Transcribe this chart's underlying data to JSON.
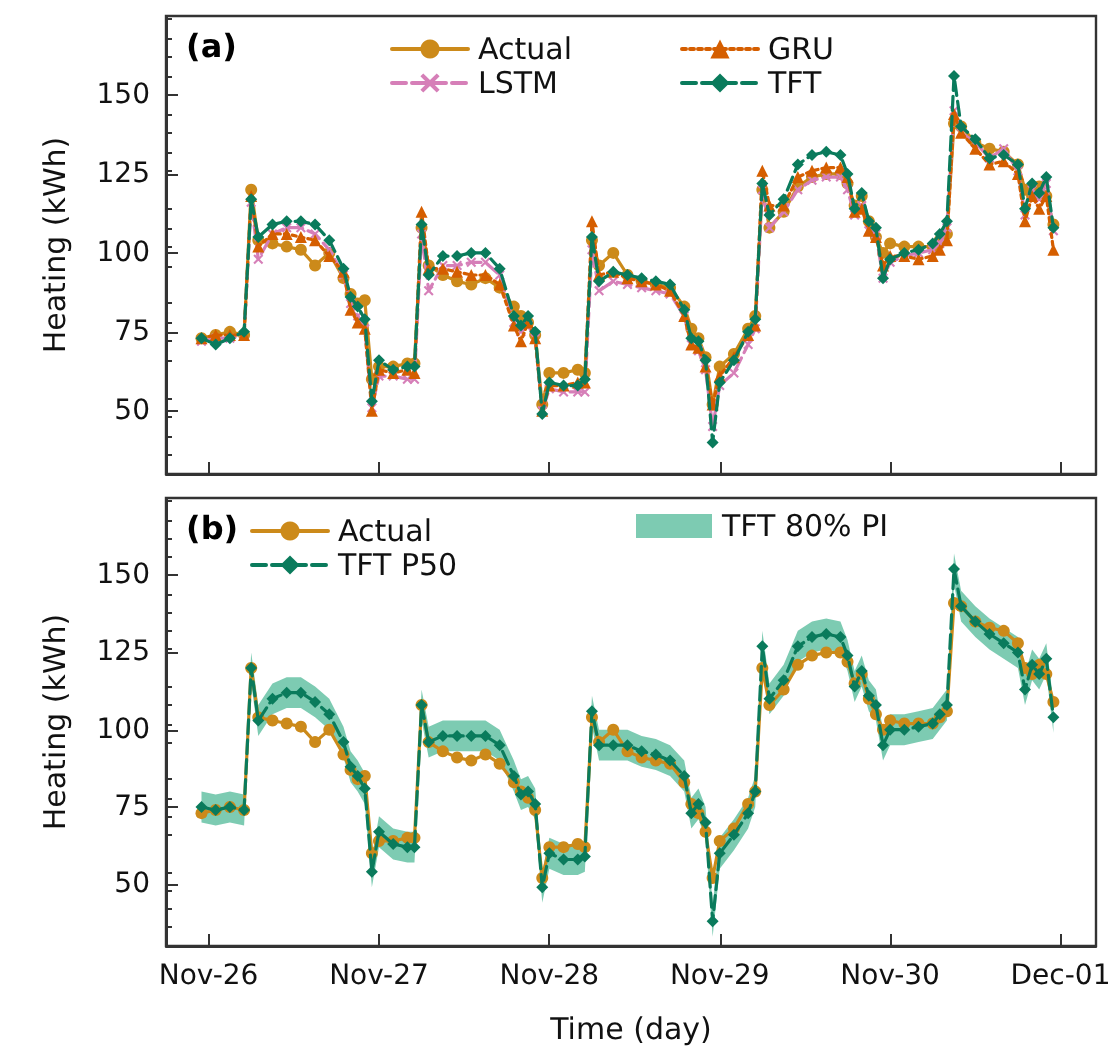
{
  "chart_data": [
    {
      "type": "line",
      "title": "(a)",
      "ylabel": "Heating (kWh)",
      "legend": "top",
      "grid": false,
      "tick_labels": "y",
      "xlim": [
        "--11-25T18:00",
        "--12-01T05:00"
      ],
      "xticks": [
        {
          "value": "--11-26",
          "label": "Nov-26"
        },
        {
          "value": "--11-27",
          "label": "Nov-27"
        },
        {
          "value": "--11-28",
          "label": "Nov-28"
        },
        {
          "value": "--11-29",
          "label": "Nov-29"
        },
        {
          "value": "--11-30",
          "label": "Nov-30"
        },
        {
          "value": "--12-01",
          "label": "Dec-01"
        }
      ],
      "ylim": [
        30,
        175
      ],
      "yticks": [
        50,
        75,
        100,
        125,
        150
      ],
      "x": [
        "--11-25T23:00",
        "--11-26T01:00",
        "--11-26T03:00",
        "--11-26T05:00",
        "--11-26T06:00",
        "--11-26T07:00",
        "--11-26T09:00",
        "--11-26T11:00",
        "--11-26T13:00",
        "--11-26T15:00",
        "--11-26T17:00",
        "--11-26T19:00",
        "--11-26T20:00",
        "--11-26T21:00",
        "--11-26T22:00",
        "--11-26T23:00",
        "--11-27T00:00",
        "--11-27T02:00",
        "--11-27T04:00",
        "--11-27T05:00",
        "--11-27T06:00",
        "--11-27T07:00",
        "--11-27T09:00",
        "--11-27T11:00",
        "--11-27T13:00",
        "--11-27T15:00",
        "--11-27T17:00",
        "--11-27T19:00",
        "--11-27T20:00",
        "--11-27T21:00",
        "--11-27T22:00",
        "--11-27T23:00",
        "--11-28T00:00",
        "--11-28T02:00",
        "--11-28T04:00",
        "--11-28T05:00",
        "--11-28T06:00",
        "--11-28T07:00",
        "--11-28T09:00",
        "--11-28T11:00",
        "--11-28T13:00",
        "--11-28T15:00",
        "--11-28T17:00",
        "--11-28T19:00",
        "--11-28T20:00",
        "--11-28T21:00",
        "--11-28T22:00",
        "--11-28T23:00",
        "--11-29T00:00",
        "--11-29T02:00",
        "--11-29T04:00",
        "--11-29T05:00",
        "--11-29T06:00",
        "--11-29T07:00",
        "--11-29T09:00",
        "--11-29T11:00",
        "--11-29T13:00",
        "--11-29T15:00",
        "--11-29T17:00",
        "--11-29T18:00",
        "--11-29T19:00",
        "--11-29T20:00",
        "--11-29T21:00",
        "--11-29T22:00",
        "--11-29T23:00",
        "--11-30T00:00",
        "--11-30T02:00",
        "--11-30T04:00",
        "--11-30T06:00",
        "--11-30T07:00",
        "--11-30T08:00",
        "--11-30T09:00",
        "--11-30T10:00",
        "--11-30T12:00",
        "--11-30T14:00",
        "--11-30T16:00",
        "--11-30T18:00",
        "--11-30T19:00",
        "--11-30T20:00",
        "--11-30T21:00",
        "--11-30T22:00",
        "--11-30T23:00"
      ],
      "series": [
        {
          "name": "Actual",
          "color": "#cc8a1a",
          "marker": "circle",
          "line_style": "solid",
          "values": [
            73,
            74,
            75,
            74,
            120,
            104,
            103,
            102,
            101,
            96,
            100,
            92,
            87,
            84,
            85,
            60,
            64,
            64,
            65,
            65,
            108,
            96,
            93,
            91,
            90,
            92,
            89,
            83,
            80,
            78,
            74,
            52,
            62,
            62,
            63,
            62,
            104,
            96,
            100,
            93,
            91,
            90,
            89,
            83,
            76,
            73,
            67,
            52,
            64,
            68,
            76,
            80,
            120,
            108,
            113,
            121,
            124,
            125,
            125,
            122,
            115,
            118,
            110,
            105,
            100,
            103,
            102,
            102,
            102,
            104,
            106,
            141,
            140,
            135,
            133,
            132,
            128,
            120,
            118,
            121,
            118,
            109
          ]
        },
        {
          "name": "LSTM",
          "color": "#d67fb8",
          "marker": "cross",
          "line_style": "dashed",
          "values": [
            72,
            73,
            73,
            74,
            116,
            98,
            106,
            108,
            108,
            106,
            101,
            93,
            84,
            80,
            76,
            51,
            61,
            61,
            60,
            60,
            106,
            88,
            96,
            96,
            97,
            97,
            93,
            78,
            75,
            77,
            73,
            50,
            57,
            56,
            56,
            56,
            101,
            88,
            91,
            90,
            89,
            88,
            87,
            80,
            71,
            69,
            63,
            45,
            58,
            62,
            71,
            76,
            120,
            108,
            113,
            120,
            123,
            124,
            124,
            120,
            112,
            115,
            107,
            106,
            92,
            97,
            99,
            100,
            101,
            103,
            108,
            145,
            138,
            135,
            130,
            133,
            126,
            112,
            120,
            117,
            122,
            107
          ]
        },
        {
          "name": "GRU",
          "color": "#d55e00",
          "marker": "triangle",
          "line_style": "dotted",
          "values": [
            73,
            74,
            74,
            74,
            118,
            102,
            106,
            106,
            105,
            104,
            99,
            94,
            82,
            78,
            76,
            50,
            63,
            62,
            63,
            62,
            113,
            95,
            95,
            94,
            93,
            93,
            90,
            77,
            72,
            78,
            73,
            50,
            58,
            58,
            59,
            59,
            110,
            93,
            94,
            92,
            91,
            90,
            88,
            80,
            71,
            70,
            64,
            52,
            61,
            67,
            74,
            77,
            126,
            115,
            115,
            124,
            126,
            127,
            127,
            124,
            113,
            114,
            107,
            105,
            96,
            99,
            99,
            98,
            99,
            101,
            104,
            144,
            138,
            133,
            128,
            129,
            125,
            110,
            118,
            114,
            118,
            101
          ]
        },
        {
          "name": "TFT",
          "color": "#0a7b5c",
          "marker": "diamond",
          "line_style": "dashed",
          "values": [
            73,
            71,
            73,
            75,
            117,
            105,
            109,
            110,
            110,
            109,
            104,
            95,
            86,
            83,
            79,
            53,
            66,
            63,
            64,
            64,
            109,
            93,
            99,
            99,
            100,
            100,
            95,
            80,
            77,
            80,
            75,
            49,
            59,
            58,
            58,
            60,
            105,
            91,
            94,
            93,
            92,
            91,
            90,
            82,
            73,
            72,
            66,
            40,
            59,
            66,
            75,
            79,
            122,
            112,
            117,
            128,
            131,
            132,
            131,
            125,
            114,
            119,
            110,
            108,
            92,
            98,
            100,
            101,
            103,
            106,
            110,
            156,
            140,
            136,
            130,
            131,
            128,
            114,
            122,
            119,
            124,
            108
          ]
        }
      ]
    },
    {
      "type": "line",
      "title": "(b)",
      "xlabel": "Time (day)",
      "ylabel": "Heating (kWh)",
      "legend": "top",
      "grid": false,
      "xlim": [
        "--11-25T18:00",
        "--12-01T05:00"
      ],
      "xticks": [
        {
          "value": "--11-26",
          "label": "Nov-26"
        },
        {
          "value": "--11-27",
          "label": "Nov-27"
        },
        {
          "value": "--11-28",
          "label": "Nov-28"
        },
        {
          "value": "--11-29",
          "label": "Nov-29"
        },
        {
          "value": "--11-30",
          "label": "Nov-30"
        },
        {
          "value": "--12-01",
          "label": "Dec-01"
        }
      ],
      "ylim": [
        30,
        175
      ],
      "yticks": [
        50,
        75,
        100,
        125,
        150
      ],
      "x": [
        "--11-25T23:00",
        "--11-26T01:00",
        "--11-26T03:00",
        "--11-26T05:00",
        "--11-26T06:00",
        "--11-26T07:00",
        "--11-26T09:00",
        "--11-26T11:00",
        "--11-26T13:00",
        "--11-26T15:00",
        "--11-26T17:00",
        "--11-26T19:00",
        "--11-26T20:00",
        "--11-26T21:00",
        "--11-26T22:00",
        "--11-26T23:00",
        "--11-27T00:00",
        "--11-27T02:00",
        "--11-27T04:00",
        "--11-27T05:00",
        "--11-27T06:00",
        "--11-27T07:00",
        "--11-27T09:00",
        "--11-27T11:00",
        "--11-27T13:00",
        "--11-27T15:00",
        "--11-27T17:00",
        "--11-27T19:00",
        "--11-27T20:00",
        "--11-27T21:00",
        "--11-27T22:00",
        "--11-27T23:00",
        "--11-28T00:00",
        "--11-28T02:00",
        "--11-28T04:00",
        "--11-28T05:00",
        "--11-28T06:00",
        "--11-28T07:00",
        "--11-28T09:00",
        "--11-28T11:00",
        "--11-28T13:00",
        "--11-28T15:00",
        "--11-28T17:00",
        "--11-28T19:00",
        "--11-28T20:00",
        "--11-28T21:00",
        "--11-28T22:00",
        "--11-28T23:00",
        "--11-29T00:00",
        "--11-29T02:00",
        "--11-29T04:00",
        "--11-29T05:00",
        "--11-29T06:00",
        "--11-29T07:00",
        "--11-29T09:00",
        "--11-29T11:00",
        "--11-29T13:00",
        "--11-29T15:00",
        "--11-29T17:00",
        "--11-29T18:00",
        "--11-29T19:00",
        "--11-29T20:00",
        "--11-29T21:00",
        "--11-29T22:00",
        "--11-29T23:00",
        "--11-30T00:00",
        "--11-30T02:00",
        "--11-30T04:00",
        "--11-30T06:00",
        "--11-30T07:00",
        "--11-30T08:00",
        "--11-30T09:00",
        "--11-30T10:00",
        "--11-30T12:00",
        "--11-30T14:00",
        "--11-30T16:00",
        "--11-30T18:00",
        "--11-30T19:00",
        "--11-30T20:00",
        "--11-30T21:00",
        "--11-30T22:00",
        "--11-30T23:00"
      ],
      "series": [
        {
          "name": "Actual",
          "color": "#cc8a1a",
          "marker": "circle",
          "line_style": "solid",
          "values": [
            73,
            74,
            75,
            74,
            120,
            104,
            103,
            102,
            101,
            96,
            100,
            92,
            87,
            84,
            85,
            60,
            64,
            64,
            65,
            65,
            108,
            96,
            93,
            91,
            90,
            92,
            89,
            83,
            80,
            78,
            74,
            52,
            62,
            62,
            63,
            62,
            104,
            96,
            100,
            93,
            91,
            90,
            89,
            83,
            76,
            73,
            67,
            52,
            64,
            68,
            76,
            80,
            120,
            108,
            113,
            121,
            124,
            125,
            125,
            122,
            115,
            118,
            110,
            105,
            100,
            103,
            102,
            102,
            102,
            104,
            106,
            141,
            140,
            135,
            133,
            132,
            128,
            120,
            118,
            121,
            118,
            109
          ]
        },
        {
          "name": "TFT P50",
          "color": "#0a7b5c",
          "marker": "diamond",
          "line_style": "dashed",
          "values": [
            75,
            74,
            75,
            74,
            120,
            103,
            110,
            112,
            112,
            109,
            105,
            96,
            88,
            85,
            81,
            54,
            67,
            63,
            62,
            62,
            108,
            96,
            98,
            98,
            98,
            98,
            95,
            85,
            79,
            80,
            76,
            49,
            60,
            58,
            58,
            59,
            106,
            95,
            95,
            95,
            93,
            92,
            90,
            85,
            73,
            76,
            70,
            38,
            60,
            66,
            73,
            80,
            127,
            110,
            116,
            127,
            130,
            131,
            130,
            124,
            114,
            119,
            111,
            108,
            95,
            100,
            100,
            101,
            102,
            105,
            108,
            152,
            140,
            135,
            131,
            128,
            125,
            113,
            121,
            118,
            123,
            104
          ],
          "lower": [
            70,
            69,
            70,
            69,
            115,
            98,
            105,
            107,
            107,
            104,
            100,
            91,
            83,
            80,
            76,
            49,
            62,
            58,
            57,
            57,
            103,
            91,
            93,
            93,
            93,
            93,
            90,
            80,
            74,
            75,
            71,
            44,
            55,
            53,
            53,
            54,
            101,
            90,
            90,
            90,
            88,
            87,
            85,
            80,
            68,
            71,
            65,
            33,
            55,
            61,
            68,
            75,
            122,
            105,
            111,
            122,
            125,
            126,
            125,
            119,
            109,
            114,
            106,
            103,
            90,
            95,
            95,
            96,
            97,
            100,
            103,
            147,
            135,
            130,
            126,
            123,
            120,
            108,
            116,
            113,
            118,
            99
          ],
          "upper": [
            80,
            79,
            80,
            79,
            125,
            108,
            115,
            117,
            117,
            114,
            110,
            101,
            93,
            90,
            86,
            59,
            72,
            68,
            67,
            67,
            113,
            101,
            103,
            103,
            103,
            103,
            100,
            90,
            84,
            85,
            81,
            54,
            65,
            63,
            63,
            64,
            111,
            100,
            100,
            100,
            98,
            97,
            95,
            90,
            78,
            81,
            75,
            43,
            65,
            71,
            78,
            85,
            132,
            115,
            121,
            132,
            135,
            136,
            135,
            129,
            119,
            124,
            116,
            113,
            100,
            105,
            105,
            106,
            107,
            110,
            113,
            157,
            145,
            140,
            136,
            133,
            130,
            118,
            126,
            123,
            128,
            109
          ]
        }
      ],
      "annotations": [
        "TFT 80% PI"
      ]
    }
  ]
}
